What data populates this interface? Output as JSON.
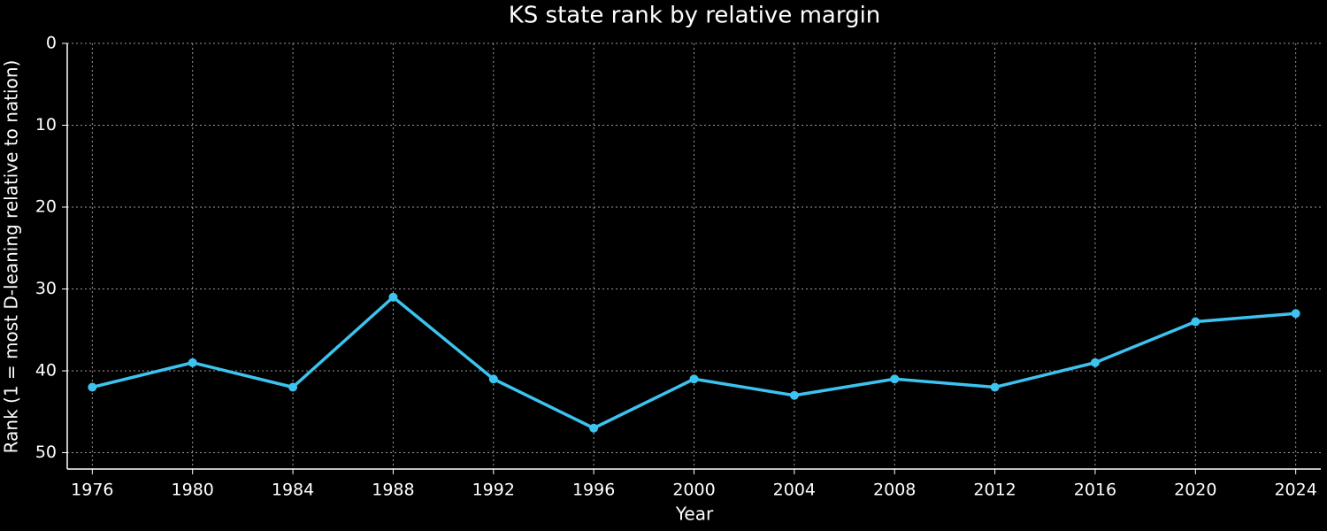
{
  "chart_data": {
    "type": "line",
    "title": "KS state rank by relative margin",
    "x_label": "Year",
    "y_label": "Rank (1 = most D-leaning relative to nation)",
    "x": [
      1976,
      1980,
      1984,
      1988,
      1992,
      1996,
      2000,
      2004,
      2008,
      2012,
      2016,
      2020,
      2024
    ],
    "series": [
      {
        "name": "KS",
        "color": "#3cc3ef",
        "values": [
          42,
          39,
          42,
          31,
          41,
          47,
          41,
          43,
          41,
          42,
          39,
          34,
          33
        ]
      }
    ],
    "xlim": [
      1975,
      2025
    ],
    "xticks": [
      1976,
      1980,
      1984,
      1988,
      1992,
      1996,
      2000,
      2004,
      2008,
      2012,
      2016,
      2020,
      2024
    ],
    "ylim": [
      0,
      52
    ],
    "yticks": [
      0,
      10,
      20,
      30,
      40,
      50
    ],
    "y_inverted": true,
    "grid": true
  }
}
